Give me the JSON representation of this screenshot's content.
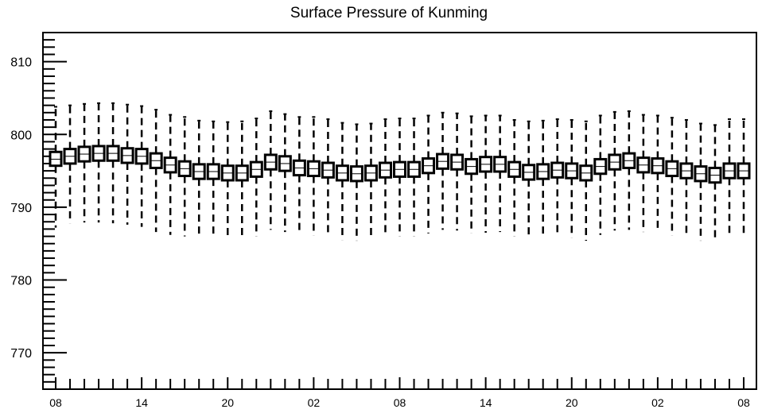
{
  "chart_data": {
    "type": "boxplot",
    "title": "Surface Pressure of Kunming",
    "xlabel": "",
    "ylabel": "",
    "ylim": [
      765,
      814
    ],
    "yticks": [
      770,
      780,
      790,
      800,
      810
    ],
    "ytick_labels": [
      "770",
      "780",
      "790",
      "800",
      "810"
    ],
    "xtick_labels": [
      "08",
      "14",
      "20",
      "02",
      "08",
      "14",
      "20",
      "02",
      "08"
    ],
    "grid": false,
    "legend": "none",
    "box_style": "hollow square boxes with dashed whiskers",
    "colors": {
      "line": "#000000",
      "box_fill": "#ffffff"
    },
    "n_steps": 49,
    "x_step_hours": 1,
    "series": [
      {
        "medians": [
          796.6,
          797.0,
          797.3,
          797.4,
          797.4,
          797.1,
          797.0,
          796.4,
          795.8,
          795.3,
          794.9,
          794.9,
          794.7,
          794.7,
          795.2,
          796.2,
          796.0,
          795.4,
          795.3,
          795.1,
          794.7,
          794.6,
          794.7,
          795.1,
          795.2,
          795.2,
          795.7,
          796.3,
          796.2,
          795.6,
          795.9,
          795.9,
          795.2,
          794.8,
          794.9,
          795.1,
          795.0,
          794.7,
          795.6,
          796.2,
          796.4,
          795.8,
          795.7,
          795.3,
          795.0,
          794.6,
          794.4,
          795.0,
          795.0
        ],
        "box_low": [
          795.7,
          796.0,
          796.3,
          796.4,
          796.4,
          796.1,
          796.0,
          795.4,
          794.8,
          794.3,
          793.9,
          793.9,
          793.7,
          793.7,
          794.2,
          795.2,
          795.0,
          794.4,
          794.3,
          794.1,
          793.7,
          793.6,
          793.7,
          794.1,
          794.2,
          794.2,
          794.7,
          795.3,
          795.2,
          794.6,
          794.9,
          794.9,
          794.2,
          793.8,
          793.9,
          794.1,
          794.0,
          793.7,
          794.6,
          795.2,
          795.4,
          794.8,
          794.7,
          794.3,
          794.0,
          793.6,
          793.4,
          794.0,
          794.0
        ],
        "box_high": [
          797.6,
          798.0,
          798.3,
          798.4,
          798.4,
          798.1,
          798.0,
          797.4,
          796.8,
          796.3,
          795.9,
          795.9,
          795.7,
          795.7,
          796.2,
          797.2,
          797.0,
          796.4,
          796.3,
          796.1,
          795.7,
          795.6,
          795.7,
          796.1,
          796.2,
          796.2,
          796.7,
          797.3,
          797.2,
          796.6,
          796.9,
          796.9,
          796.2,
          795.8,
          795.9,
          796.1,
          796.0,
          795.7,
          796.6,
          797.2,
          797.4,
          796.8,
          796.7,
          796.3,
          796.0,
          795.6,
          795.4,
          796.0,
          796.0
        ],
        "whisker_low": [
          787.2,
          787.8,
          787.9,
          787.9,
          787.8,
          787.6,
          787.3,
          786.6,
          786.2,
          786.0,
          785.8,
          785.8,
          785.6,
          785.7,
          786.0,
          786.9,
          786.6,
          786.4,
          786.1,
          786.0,
          785.5,
          785.4,
          785.6,
          786.1,
          786.0,
          786.0,
          786.4,
          786.9,
          786.8,
          786.4,
          786.5,
          786.6,
          786.0,
          785.8,
          785.8,
          786.0,
          785.8,
          785.4,
          786.2,
          786.8,
          786.9,
          786.6,
          786.6,
          786.1,
          785.9,
          785.4,
          785.3,
          785.9,
          785.9
        ],
        "whisker_high": [
          803.8,
          804.0,
          804.2,
          804.3,
          804.3,
          804.1,
          803.9,
          803.4,
          802.7,
          802.4,
          801.9,
          801.8,
          801.7,
          801.8,
          802.2,
          803.2,
          802.8,
          802.4,
          802.4,
          802.1,
          801.6,
          801.4,
          801.5,
          802.1,
          802.2,
          802.2,
          802.6,
          803.0,
          802.9,
          802.5,
          802.6,
          802.6,
          802.0,
          801.8,
          801.9,
          802.1,
          802.0,
          801.8,
          802.6,
          803.1,
          803.2,
          802.7,
          802.6,
          802.3,
          802.0,
          801.5,
          801.3,
          802.1,
          802.1
        ]
      }
    ]
  }
}
